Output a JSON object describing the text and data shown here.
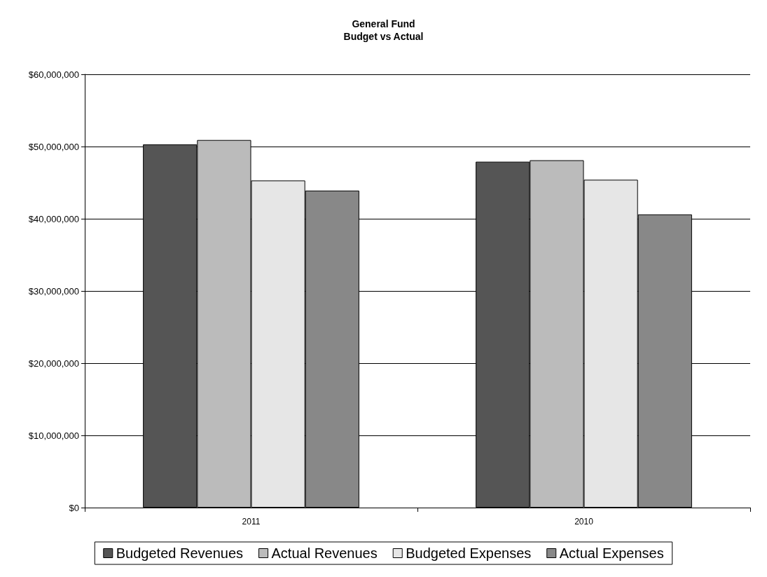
{
  "chart_data": {
    "type": "bar",
    "title": "General Fund\nBudget vs Actual",
    "categories": [
      "2011",
      "2010"
    ],
    "series": [
      {
        "name": "Budgeted Revenues",
        "color": "#555555",
        "values": [
          50300000,
          47900000
        ]
      },
      {
        "name": "Actual Revenues",
        "color": "#bbbbbb",
        "values": [
          50900000,
          48100000
        ]
      },
      {
        "name": "Budgeted Expenses",
        "color": "#e6e6e6",
        "values": [
          45300000,
          45400000
        ]
      },
      {
        "name": "Actual Expenses",
        "color": "#888888",
        "values": [
          43900000,
          40600000
        ]
      }
    ],
    "ylim": [
      0,
      60000000
    ],
    "yticks": [
      {
        "value": 0,
        "label": "$0"
      },
      {
        "value": 10000000,
        "label": "$10,000,000"
      },
      {
        "value": 20000000,
        "label": "$20,000,000"
      },
      {
        "value": 30000000,
        "label": "$30,000,000"
      },
      {
        "value": 40000000,
        "label": "$40,000,000"
      },
      {
        "value": 50000000,
        "label": "$50,000,000"
      },
      {
        "value": 60000000,
        "label": "$60,000,000"
      }
    ],
    "grid": "y",
    "legend": "bottom"
  }
}
